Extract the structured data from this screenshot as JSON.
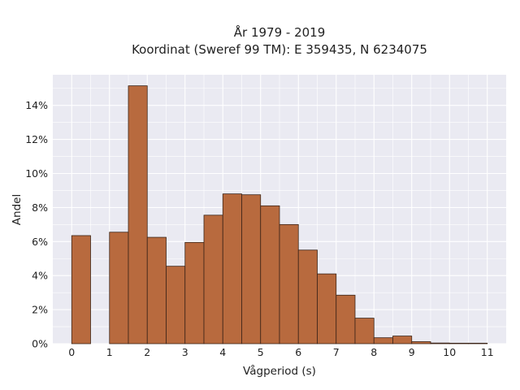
{
  "chart_data": {
    "type": "bar",
    "title_line1": "År 1979 - 2019",
    "title_line2": "Koordinat (Sweref 99 TM): E 359435, N 6234075",
    "xlabel": "Vågperiod (s)",
    "ylabel": "Andel",
    "x_ticks": [
      "0",
      "1",
      "2",
      "3",
      "4",
      "5",
      "6",
      "7",
      "8",
      "9",
      "10",
      "11"
    ],
    "y_ticks": [
      "0%",
      "2%",
      "4%",
      "6%",
      "8%",
      "10%",
      "12%",
      "14%"
    ],
    "xlim": [
      -0.5,
      11.5
    ],
    "ylim": [
      0,
      15.8
    ],
    "bin_width": 0.5,
    "bins": [
      {
        "x": 0.0,
        "value": 6.35
      },
      {
        "x": 0.5,
        "value": 0.0
      },
      {
        "x": 1.0,
        "value": 6.55
      },
      {
        "x": 1.5,
        "value": 15.15
      },
      {
        "x": 2.0,
        "value": 6.25
      },
      {
        "x": 2.5,
        "value": 4.55
      },
      {
        "x": 3.0,
        "value": 5.95
      },
      {
        "x": 3.5,
        "value": 7.55
      },
      {
        "x": 4.0,
        "value": 8.8
      },
      {
        "x": 4.5,
        "value": 8.75
      },
      {
        "x": 5.0,
        "value": 8.1
      },
      {
        "x": 5.5,
        "value": 7.0
      },
      {
        "x": 6.0,
        "value": 5.5
      },
      {
        "x": 6.5,
        "value": 4.1
      },
      {
        "x": 7.0,
        "value": 2.85
      },
      {
        "x": 7.5,
        "value": 1.5
      },
      {
        "x": 8.0,
        "value": 0.35
      },
      {
        "x": 8.5,
        "value": 0.45
      },
      {
        "x": 9.0,
        "value": 0.12
      },
      {
        "x": 9.5,
        "value": 0.04
      },
      {
        "x": 10.0,
        "value": 0.03
      },
      {
        "x": 10.5,
        "value": 0.03
      }
    ],
    "grid": true,
    "colors": {
      "bar_fill": "#b86a3e",
      "bar_edge": "#3b2418",
      "plot_bg": "#eaeaf2",
      "grid": "#ffffff"
    }
  }
}
